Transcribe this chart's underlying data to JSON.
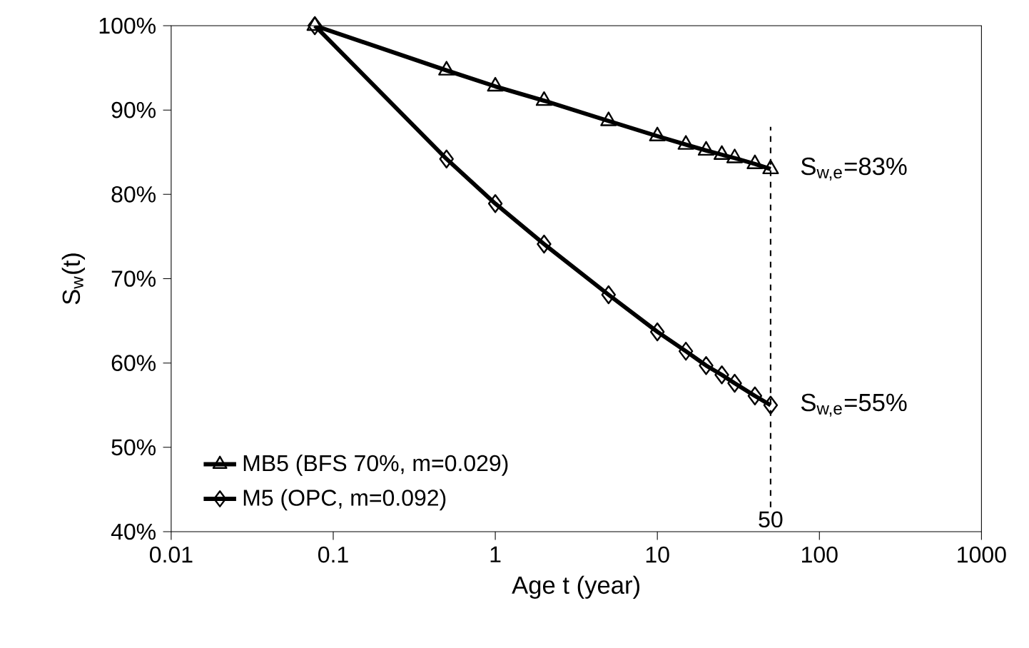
{
  "chart_data": {
    "type": "line",
    "xlabel": "Age t (year)",
    "ylabel": "S$_{w}$(t)",
    "log": "x",
    "xlim": [
      0.01,
      1000
    ],
    "xticks": [
      0.01,
      0.1,
      1,
      10,
      100,
      1000
    ],
    "ylim": [
      40,
      100
    ],
    "yticks": [
      {
        "value": 40,
        "label": "40%"
      },
      {
        "value": 50,
        "label": "50%"
      },
      {
        "value": 60,
        "label": "60%"
      },
      {
        "value": 70,
        "label": "70%"
      },
      {
        "value": 80,
        "label": "80%"
      },
      {
        "value": 90,
        "label": "90%"
      },
      {
        "value": 100,
        "label": "100%"
      }
    ],
    "x": [
      0.077,
      0.5,
      1,
      2,
      5,
      10,
      15,
      20,
      25,
      30,
      40,
      50
    ],
    "series": [
      {
        "name": "MB5 (BFS 70%, m=0.029)",
        "color": "#000000",
        "marker": "triangle",
        "values": [
          100,
          94.7,
          92.8,
          91.1,
          88.7,
          86.9,
          85.9,
          85.2,
          84.7,
          84.3,
          83.6,
          83
        ]
      },
      {
        "name": "M5 (OPC, m=0.092)",
        "color": "#000000",
        "marker": "diamond",
        "values": [
          100,
          84.2,
          78.9,
          74.1,
          68.1,
          63.7,
          61.4,
          59.7,
          58.6,
          57.6,
          56.1,
          55
        ]
      }
    ],
    "line_style": "solid",
    "grid": false,
    "legend": "bottom left",
    "ref_lines": [
      {
        "axis": "x",
        "value": 50,
        "label": "50",
        "line_style": "dashed"
      }
    ],
    "annotations": [
      {
        "text": "S$_{w,e}$=83%",
        "x": 50,
        "y": 83
      },
      {
        "text": "S$_{w,e}$=55%",
        "x": 50,
        "y": 55
      }
    ]
  }
}
